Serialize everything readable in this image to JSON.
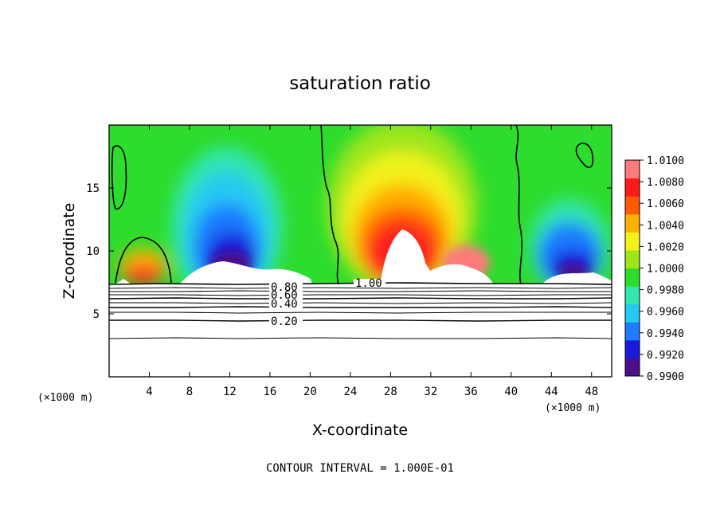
{
  "chart_data": {
    "type": "heatmap",
    "title": "saturation ratio",
    "xlabel": "X-coordinate",
    "ylabel": "Z-coordinate",
    "x_unit": "(×1000 m)",
    "y_unit": "(×1000 m)",
    "xlim": [
      0,
      50
    ],
    "ylim": [
      0,
      20
    ],
    "x_ticks": [
      4,
      8,
      12,
      16,
      20,
      24,
      28,
      32,
      36,
      40,
      44,
      48
    ],
    "y_ticks": [
      5,
      10,
      15
    ],
    "colorbar": {
      "min": 0.99,
      "max": 1.01,
      "labels": [
        "1.0100",
        "1.0080",
        "1.0060",
        "1.0040",
        "1.0020",
        "1.0000",
        "0.9980",
        "0.9960",
        "0.9940",
        "0.9920",
        "0.9900"
      ],
      "colors": [
        "#4b0f8c",
        "#1a1adc",
        "#1f7bff",
        "#26c9f0",
        "#33e6b0",
        "#2ddc2d",
        "#9ee61a",
        "#f2f21a",
        "#ffb000",
        "#ff5a00",
        "#ff1a1a",
        "#ff7a7a"
      ]
    },
    "contour_levels": [
      0.2,
      0.4,
      0.6,
      0.8,
      1.0
    ],
    "contour_labels": [
      "0.20",
      "0.40",
      "0.60",
      "0.80",
      "1.00"
    ],
    "footer": "CONTOUR INTERVAL = 1.000E-01"
  }
}
